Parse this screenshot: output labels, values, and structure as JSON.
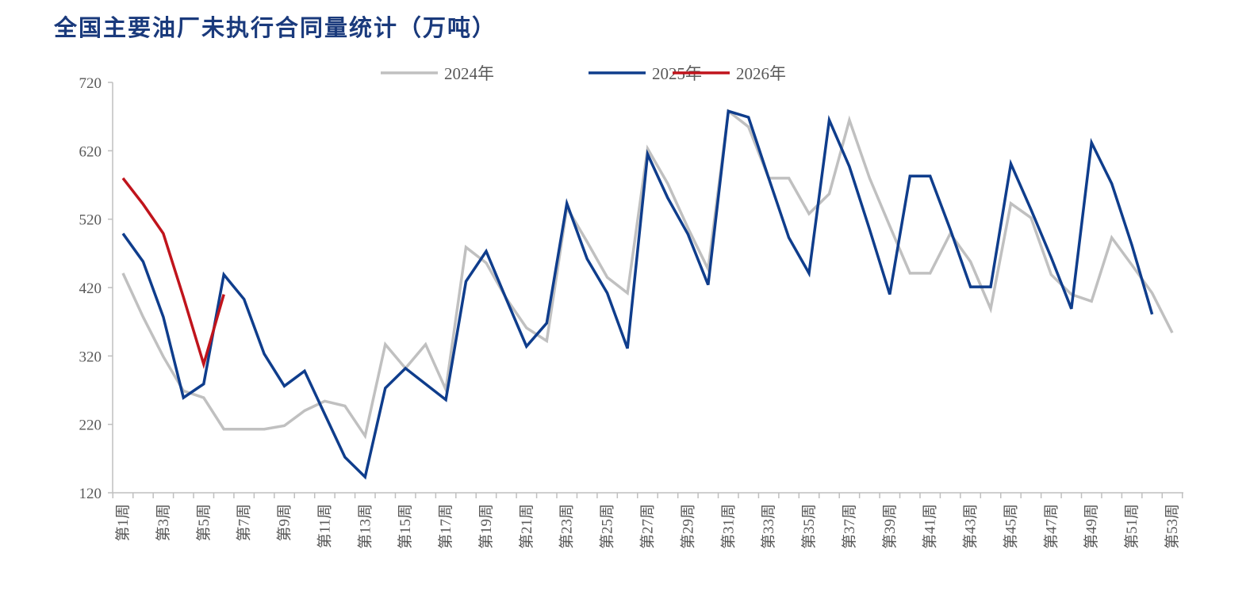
{
  "chart_data": {
    "type": "line",
    "title": "全国主要油厂未执行合同量统计（万吨）",
    "xlabel": "",
    "ylabel": "",
    "ylim": [
      120,
      720
    ],
    "yticks": [
      120,
      220,
      320,
      420,
      520,
      620,
      720
    ],
    "xlim": [
      1,
      53
    ],
    "legend_position": "top-center",
    "grid": false,
    "x_tick_labels": [
      "第1周",
      "第3周",
      "第5周",
      "第7周",
      "第9周",
      "第11周",
      "第13周",
      "第15周",
      "第17周",
      "第19周",
      "第21周",
      "第23周",
      "第25周",
      "第27周",
      "第29周",
      "第31周",
      "第33周",
      "第35周",
      "第37周",
      "第39周",
      "第41周",
      "第43周",
      "第45周",
      "第47周",
      "第49周",
      "第51周",
      "第53周"
    ],
    "series": [
      {
        "name": "2024年",
        "color": "#c0c0c0",
        "values": [
          441,
          377,
          319,
          269,
          259,
          213,
          213,
          213,
          218,
          240,
          254,
          247,
          203,
          337,
          302,
          337,
          271,
          479,
          456,
          404,
          361,
          342,
          537,
          487,
          435,
          412,
          623,
          572,
          507,
          447,
          678,
          655,
          580,
          580,
          528,
          557,
          665,
          580,
          510,
          441,
          441,
          499,
          458,
          389,
          543,
          522,
          439,
          410,
          400,
          493,
          453,
          412,
          354
        ]
      },
      {
        "name": "2025年",
        "color": "#0f3d8c",
        "values": [
          499,
          458,
          377,
          259,
          279,
          439,
          403,
          323,
          276,
          298,
          235,
          172,
          143,
          273,
          302,
          279,
          256,
          429,
          473,
          403,
          334,
          368,
          543,
          462,
          412,
          331,
          615,
          551,
          498,
          424,
          678,
          669,
          580,
          493,
          441,
          665,
          597,
          505,
          410,
          583,
          583,
          505,
          421,
          421,
          601,
          534,
          464,
          389,
          632,
          572,
          482,
          381
        ]
      },
      {
        "name": "2026年",
        "color": "#c0141c",
        "values": [
          580,
          542,
          499,
          406,
          308,
          410
        ]
      }
    ]
  }
}
